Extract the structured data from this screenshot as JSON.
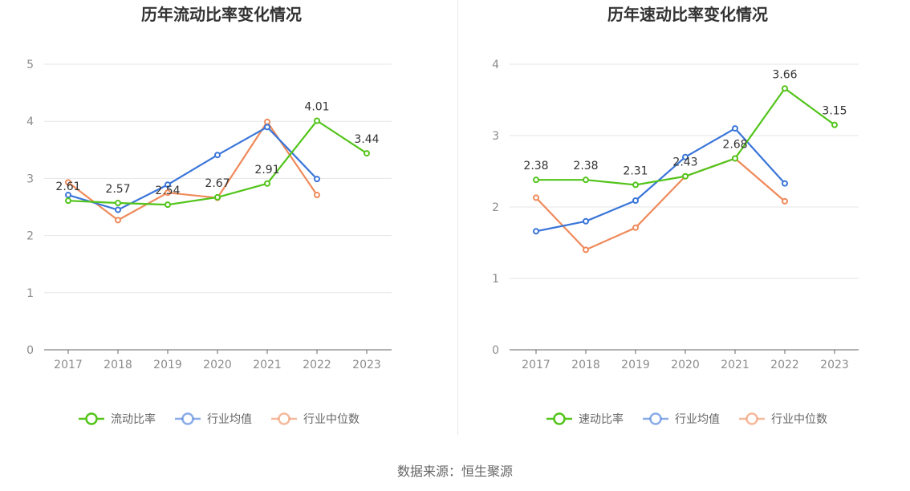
{
  "chart_data": [
    {
      "type": "line",
      "title": "历年流动比率变化情况",
      "categories": [
        "2017",
        "2018",
        "2019",
        "2020",
        "2021",
        "2022",
        "2023"
      ],
      "ylim": [
        0,
        5
      ],
      "yticks": [
        "0",
        "1",
        "2",
        "3",
        "4",
        "5"
      ],
      "grid": true,
      "legend_position": "bottom",
      "series": [
        {
          "name": "流动比率",
          "color": "#52c41a",
          "values": [
            2.61,
            2.57,
            2.54,
            2.67,
            2.91,
            4.01,
            3.44
          ],
          "labels": [
            "2.61",
            "2.57",
            "2.54",
            "2.67",
            "2.91",
            "4.01",
            "3.44"
          ]
        },
        {
          "name": "行业均值",
          "color": "#3a75d9",
          "values": [
            2.71,
            2.45,
            2.89,
            3.41,
            3.9,
            2.99,
            null
          ]
        },
        {
          "name": "行业中位数",
          "color": "#ef8a5a",
          "values": [
            2.93,
            2.27,
            2.75,
            2.66,
            3.99,
            2.71,
            null
          ]
        }
      ]
    },
    {
      "type": "line",
      "title": "历年速动比率变化情况",
      "categories": [
        "2017",
        "2018",
        "2019",
        "2020",
        "2021",
        "2022",
        "2023"
      ],
      "ylim": [
        0,
        4
      ],
      "yticks": [
        "0",
        "1",
        "2",
        "3",
        "4"
      ],
      "grid": true,
      "legend_position": "bottom",
      "series": [
        {
          "name": "速动比率",
          "color": "#52c41a",
          "values": [
            2.38,
            2.38,
            2.31,
            2.43,
            2.68,
            3.66,
            3.15
          ],
          "labels": [
            "2.38",
            "2.38",
            "2.31",
            "2.43",
            "2.68",
            "3.66",
            "3.15"
          ]
        },
        {
          "name": "行业均值",
          "color": "#3a75d9",
          "values": [
            1.66,
            1.8,
            2.09,
            2.7,
            3.1,
            2.33,
            null
          ]
        },
        {
          "name": "行业中位数",
          "color": "#ef8a5a",
          "values": [
            2.13,
            1.4,
            1.71,
            2.43,
            2.68,
            2.08,
            null
          ]
        }
      ]
    }
  ],
  "footer": {
    "source": "数据来源：恒生聚源"
  }
}
